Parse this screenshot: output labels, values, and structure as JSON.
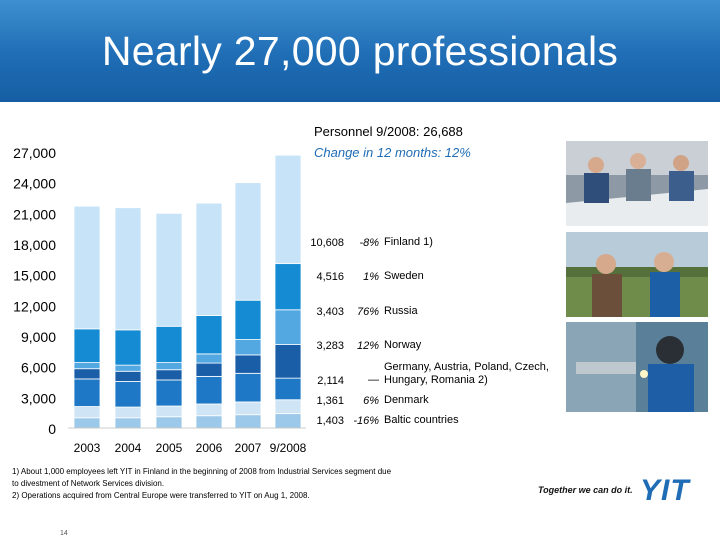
{
  "title": "Nearly 27,000 professionals",
  "personnel": "Personnel 9/2008: 26,688",
  "change": "Change in 12 months: 12%",
  "chart_data": {
    "type": "bar",
    "stacked": true,
    "categories": [
      "2003",
      "2004",
      "2005",
      "2006",
      "2007",
      "9/2008"
    ],
    "yticks": [
      "0",
      "3,000",
      "6,000",
      "9,000",
      "12,000",
      "15,000",
      "18,000",
      "21,000",
      "24,000",
      "27,000"
    ],
    "ylim": [
      0,
      27000
    ],
    "grid": false,
    "series": [
      {
        "name": "Baltic countries",
        "color": "#9cc8ea",
        "values": [
          1000,
          1000,
          1100,
          1200,
          1300,
          1403
        ]
      },
      {
        "name": "Denmark",
        "color": "#cfe5f6",
        "values": [
          1100,
          1050,
          1050,
          1150,
          1250,
          1361
        ]
      },
      {
        "name": "Germany, Austria, Poland, Czech, Hungary, Romania 2)",
        "color": "#1f78c6",
        "values": [
          2700,
          2500,
          2550,
          2700,
          2800,
          2114
        ]
      },
      {
        "name": "Norway",
        "color": "#1a5ea8",
        "values": [
          1000,
          1000,
          1000,
          1300,
          1800,
          3283
        ]
      },
      {
        "name": "Russia",
        "color": "#53a8e2",
        "values": [
          600,
          600,
          700,
          900,
          1500,
          3403
        ]
      },
      {
        "name": "Sweden",
        "color": "#158bd3",
        "values": [
          3300,
          3450,
          3550,
          3750,
          3850,
          4516
        ]
      },
      {
        "name": "Finland 1)",
        "color": "#c6e3f7",
        "values": [
          12000,
          11950,
          11050,
          11000,
          11500,
          10608
        ]
      }
    ],
    "labels_2008": [
      {
        "value": "10,608",
        "change": "-8%",
        "country": "Finland 1)"
      },
      {
        "value": "4,516",
        "change": "1%",
        "country": "Sweden"
      },
      {
        "value": "3,403",
        "change": "76%",
        "country": "Russia"
      },
      {
        "value": "3,283",
        "change": "12%",
        "country": "Norway"
      },
      {
        "value": "2,114",
        "change": "—",
        "country": "Germany, Austria, Poland, Czech, Hungary, Romania 2)"
      },
      {
        "value": "1,361",
        "change": "6%",
        "country": "Denmark"
      },
      {
        "value": "1,403",
        "change": "-16%",
        "country": "Baltic countries"
      }
    ]
  },
  "footnotes": [
    "1) About 1,000 employees left YIT in Finland in the beginning of 2008 from Industrial Services segment due",
    "to divestment of Network Services division.",
    "2) Operations acquired from Central Europe were transferred to YIT on Aug 1, 2008."
  ],
  "tagline": "Together we can do it.",
  "logo": "YIT",
  "page_number": "14",
  "photos": [
    "engineers-meeting-photo",
    "workers-outdoor-photo",
    "welder-photo"
  ]
}
